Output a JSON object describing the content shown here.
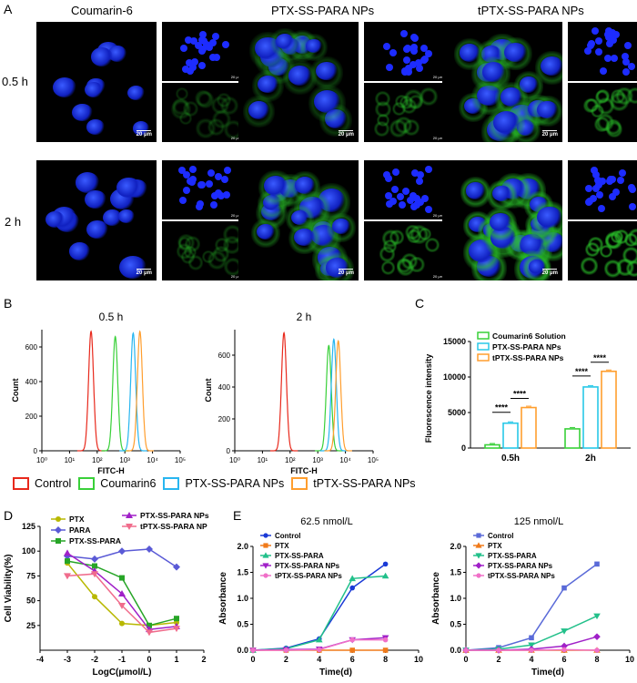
{
  "panel_letters": {
    "a": "A",
    "b": "B",
    "c": "C",
    "d": "D",
    "e": "E"
  },
  "panel_a": {
    "columns": [
      "Coumarin-6",
      "PTX-SS-PARA NPs",
      "tPTX-SS-PARA NPs"
    ],
    "rows": [
      "0.5 h",
      "2 h"
    ],
    "scale_bar": "20 μm"
  },
  "panel_b": {
    "titles": [
      "0.5 h",
      "2 h"
    ],
    "xlabel": "FITC-H",
    "ylabel": "Count",
    "legend": [
      "Control",
      "Coumarin6",
      "PTX-SS-PARA NPs",
      "tPTX-SS-PARA NPs"
    ],
    "colors": {
      "Control": "#e8291c",
      "Coumarin6": "#39d039",
      "PTX": "#28b6f0",
      "tPTX": "#ff9e2e"
    }
  },
  "chart_data": [
    {
      "type": "line",
      "title": "0.5 h",
      "xlabel": "FITC-H",
      "ylabel": "Count",
      "x_scale": "log",
      "x_ticks": [
        "10⁰",
        "10¹",
        "10²",
        "10³",
        "10⁴",
        "10⁵"
      ],
      "y_ticks": [
        0,
        200,
        400,
        600
      ],
      "ylim": [
        0,
        700
      ],
      "series": [
        {
          "name": "Control",
          "peak_x": 60,
          "peak_count": 690
        },
        {
          "name": "Coumarin6",
          "peak_x": 450,
          "peak_count": 660
        },
        {
          "name": "PTX-SS-PARA NPs",
          "peak_x": 2000,
          "peak_count": 680
        },
        {
          "name": "tPTX-SS-PARA NPs",
          "peak_x": 3500,
          "peak_count": 690
        }
      ]
    },
    {
      "type": "line",
      "title": "2 h",
      "xlabel": "FITC-H",
      "ylabel": "Count",
      "x_scale": "log",
      "x_ticks": [
        "10⁰",
        "10¹",
        "10²",
        "10³",
        "10⁴",
        "10⁵"
      ],
      "y_ticks": [
        0,
        200,
        400,
        600
      ],
      "ylim": [
        0,
        760
      ],
      "series": [
        {
          "name": "Control",
          "peak_x": 60,
          "peak_count": 740
        },
        {
          "name": "Coumarin6",
          "peak_x": 2500,
          "peak_count": 660
        },
        {
          "name": "PTX-SS-PARA NPs",
          "peak_x": 3800,
          "peak_count": 700
        },
        {
          "name": "tPTX-SS-PARA NPs",
          "peak_x": 5500,
          "peak_count": 690
        }
      ]
    },
    {
      "type": "bar",
      "ylabel": "Fluorescence intensity",
      "categories": [
        "0.5h",
        "2h"
      ],
      "ylim": [
        0,
        15000
      ],
      "y_ticks": [
        0,
        5000,
        10000,
        15000
      ],
      "series": [
        {
          "name": "Coumarin6 Solution",
          "values": [
            450,
            2700
          ],
          "color": "#39d039"
        },
        {
          "name": "PTX-SS-PARA NPs",
          "values": [
            3500,
            8600
          ],
          "color": "#28c8e8"
        },
        {
          "name": "tPTX-SS-PARA NPs",
          "values": [
            5700,
            10800
          ],
          "color": "#ff9e2e"
        }
      ],
      "significance": [
        "****",
        "****",
        "****",
        "****"
      ]
    },
    {
      "type": "line",
      "xlabel": "LogC(μmol/L)",
      "ylabel": "Cell Viability(%)",
      "xlim": [
        -4,
        2
      ],
      "ylim": [
        0,
        125
      ],
      "x_ticks": [
        -4,
        -3,
        -2,
        -1,
        0,
        1,
        2
      ],
      "y_ticks": [
        25,
        50,
        75,
        100,
        125
      ],
      "x": [
        -3,
        -2,
        -1,
        0,
        1
      ],
      "series": [
        {
          "name": "PTX",
          "values": [
            88,
            54,
            27,
            25,
            28
          ],
          "color": "#b8b800",
          "marker": "circle"
        },
        {
          "name": "PARA",
          "values": [
            95,
            92,
            100,
            102,
            84
          ],
          "color": "#5a5ad6",
          "marker": "diamond"
        },
        {
          "name": "PTX-SS-PARA",
          "values": [
            90,
            85,
            73,
            25,
            32
          ],
          "color": "#27a527",
          "marker": "square"
        },
        {
          "name": "PTX-SS-PARA NPs",
          "values": [
            98,
            80,
            57,
            21,
            24
          ],
          "color": "#a020c8",
          "marker": "triangle"
        },
        {
          "name": "tPTX-SS-PARA NP",
          "values": [
            75,
            77,
            45,
            18,
            22
          ],
          "color": "#f06c8c",
          "marker": "triangle-down"
        }
      ]
    },
    {
      "type": "line",
      "title": "62.5 nmol/L",
      "xlabel": "Time(d)",
      "ylabel": "Absorbance",
      "xlim": [
        0,
        10
      ],
      "ylim": [
        0,
        2.0
      ],
      "x_ticks": [
        0,
        2,
        4,
        6,
        8,
        10
      ],
      "y_ticks": [
        0.0,
        0.5,
        1.0,
        1.5,
        2.0
      ],
      "x": [
        0,
        2,
        4,
        6,
        8
      ],
      "series": [
        {
          "name": "Control",
          "values": [
            0.0,
            0.04,
            0.22,
            1.2,
            1.66
          ],
          "color": "#1a3ad6",
          "marker": "circle"
        },
        {
          "name": "PTX",
          "values": [
            0.0,
            0.0,
            0.0,
            0.0,
            0.0
          ],
          "color": "#f07a1a",
          "marker": "square"
        },
        {
          "name": "PTX-SS-PARA",
          "values": [
            0.0,
            0.03,
            0.2,
            1.38,
            1.43
          ],
          "color": "#22c08a",
          "marker": "triangle"
        },
        {
          "name": "PTX-SS-PARA NPs",
          "values": [
            0.0,
            0.01,
            0.02,
            0.2,
            0.24
          ],
          "color": "#a020c8",
          "marker": "triangle-down"
        },
        {
          "name": "tPTX-SS-PARA NPs",
          "values": [
            0.0,
            0.0,
            0.01,
            0.2,
            0.2
          ],
          "color": "#f070c8",
          "marker": "circle"
        }
      ]
    },
    {
      "type": "line",
      "title": "125 nmol/L",
      "xlabel": "Time(d)",
      "ylabel": "Absorbance",
      "xlim": [
        0,
        10
      ],
      "ylim": [
        0,
        2.0
      ],
      "x_ticks": [
        0,
        2,
        4,
        6,
        8,
        10
      ],
      "y_ticks": [
        0.0,
        0.5,
        1.0,
        1.5,
        2.0
      ],
      "x": [
        0,
        2,
        4,
        6,
        8
      ],
      "series": [
        {
          "name": "Control",
          "values": [
            0.0,
            0.05,
            0.24,
            1.2,
            1.66
          ],
          "color": "#5a6ad8",
          "marker": "square"
        },
        {
          "name": "PTX",
          "values": [
            0.0,
            0.0,
            0.0,
            0.0,
            0.0
          ],
          "color": "#f07a1a",
          "marker": "triangle"
        },
        {
          "name": "PTX-SS-PARA",
          "values": [
            0.0,
            0.02,
            0.1,
            0.37,
            0.66
          ],
          "color": "#22c08a",
          "marker": "triangle-down"
        },
        {
          "name": "PTX-SS-PARA NPs",
          "values": [
            0.0,
            0.0,
            0.02,
            0.08,
            0.26
          ],
          "color": "#a020c8",
          "marker": "diamond"
        },
        {
          "name": "tPTX-SS-PARA NPs",
          "values": [
            0.0,
            0.0,
            0.0,
            0.01,
            0.0
          ],
          "color": "#f070c8",
          "marker": "circle"
        }
      ]
    }
  ]
}
